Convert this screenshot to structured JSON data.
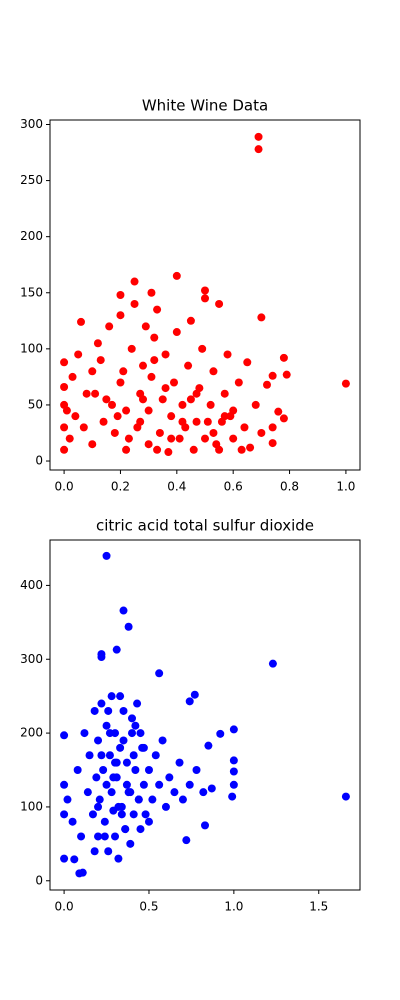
{
  "chart_data": [
    {
      "type": "scatter",
      "title": "White Wine Data",
      "color": "#ff0000",
      "x": [
        0.69,
        0.69,
        1.0,
        0.78,
        0.79,
        0.7,
        0.4,
        0.25,
        0.5,
        0.55,
        0.31,
        0.2,
        0.06,
        0.74,
        0.72,
        0.74,
        0.74,
        0.76,
        0.78,
        0,
        0,
        0,
        0,
        0,
        0.02,
        0.04,
        0.05,
        0.08,
        0.1,
        0.1,
        0.12,
        0.14,
        0.15,
        0.16,
        0.18,
        0.2,
        0.2,
        0.22,
        0.22,
        0.24,
        0.25,
        0.26,
        0.27,
        0.28,
        0.29,
        0.3,
        0.3,
        0.31,
        0.32,
        0.33,
        0.34,
        0.35,
        0.36,
        0.37,
        0.38,
        0.39,
        0.4,
        0.41,
        0.42,
        0.44,
        0.45,
        0.46,
        0.47,
        0.48,
        0.49,
        0.5,
        0.5,
        0.52,
        0.53,
        0.55,
        0.56,
        0.57,
        0.58,
        0.6,
        0.6,
        0.62,
        0.64,
        0.65,
        0.66,
        0.68,
        0.7,
        0.03,
        0.07,
        0.13,
        0.19,
        0.23,
        0.28,
        0.33,
        0.36,
        0.43,
        0.47,
        0.51,
        0.54,
        0.59,
        0.63,
        0.01,
        0.11,
        0.17,
        0.21,
        0.27,
        0.32,
        0.38,
        0.42,
        0.45,
        0.53,
        0.57
      ],
      "y": [
        289,
        278,
        69,
        92,
        77,
        128,
        165,
        160,
        152,
        140,
        150,
        148,
        124,
        76,
        68,
        30,
        16,
        44,
        38,
        10,
        30,
        50,
        66,
        88,
        20,
        40,
        95,
        60,
        15,
        80,
        105,
        35,
        55,
        120,
        25,
        70,
        130,
        45,
        10,
        100,
        140,
        30,
        60,
        85,
        120,
        15,
        45,
        75,
        110,
        135,
        25,
        55,
        95,
        8,
        40,
        70,
        115,
        20,
        50,
        85,
        125,
        10,
        35,
        65,
        100,
        145,
        20,
        50,
        80,
        10,
        35,
        60,
        95,
        20,
        45,
        70,
        30,
        88,
        12,
        50,
        25,
        75,
        30,
        90,
        40,
        20,
        55,
        10,
        65,
        30,
        60,
        35,
        15,
        40,
        10,
        45,
        60,
        50,
        80,
        35,
        90,
        20,
        35,
        55,
        25,
        40
      ],
      "xlim": [
        -0.05,
        1.05
      ],
      "ylim": [
        -8,
        304
      ],
      "xticks": [
        {
          "value": 0,
          "label": "0.0"
        },
        0.2,
        0.4,
        0.6,
        0.8,
        {
          "value": 1,
          "label": "1.0"
        }
      ],
      "yticks": [
        0,
        50,
        100,
        150,
        200,
        250,
        300
      ]
    },
    {
      "type": "scatter",
      "title": "citric acid total sulfur dioxide",
      "color": "#0000ff",
      "x": [
        0.25,
        0.35,
        0.38,
        0.31,
        0.22,
        0.22,
        1.23,
        1.66,
        0.56,
        0.0,
        0.0,
        0.06,
        0.09,
        0.11,
        1.0,
        1.0,
        1.0,
        1.0,
        0.99,
        0.92,
        0.85,
        0.72,
        0.77,
        0.74,
        0.83,
        0.82,
        0.87,
        0,
        0,
        0.02,
        0.05,
        0.08,
        0.1,
        0.12,
        0.14,
        0.15,
        0.17,
        0.18,
        0.19,
        0.2,
        0.2,
        0.21,
        0.22,
        0.23,
        0.24,
        0.25,
        0.26,
        0.27,
        0.28,
        0.28,
        0.29,
        0.3,
        0.3,
        0.31,
        0.32,
        0.33,
        0.34,
        0.35,
        0.36,
        0.37,
        0.38,
        0.39,
        0.4,
        0.41,
        0.42,
        0.43,
        0.44,
        0.45,
        0.46,
        0.47,
        0.48,
        0.5,
        0.52,
        0.54,
        0.56,
        0.58,
        0.6,
        0.62,
        0.65,
        0.68,
        0.7,
        0.74,
        0.78,
        0.2,
        0.25,
        0.3,
        0.35,
        0.4,
        0.45,
        0.5,
        0.22,
        0.27,
        0.32,
        0.37,
        0.42,
        0.47,
        0.24,
        0.29,
        0.34,
        0.39,
        0.44,
        0.26,
        0.31,
        0.36,
        0.41,
        0.18,
        0.33
      ],
      "y": [
        440,
        366,
        344,
        313,
        307,
        303,
        294,
        114,
        281,
        197,
        30,
        29,
        10,
        11,
        205,
        163,
        148,
        130,
        114,
        199,
        183,
        55,
        252,
        243,
        75,
        120,
        125,
        130,
        90,
        110,
        80,
        150,
        60,
        200,
        120,
        170,
        90,
        230,
        140,
        60,
        190,
        110,
        240,
        150,
        80,
        210,
        40,
        170,
        120,
        250,
        95,
        60,
        200,
        140,
        30,
        180,
        100,
        230,
        70,
        160,
        120,
        50,
        200,
        90,
        150,
        240,
        110,
        70,
        180,
        130,
        90,
        150,
        110,
        170,
        130,
        190,
        100,
        140,
        120,
        160,
        110,
        130,
        150,
        100,
        130,
        160,
        190,
        220,
        200,
        80,
        170,
        200,
        100,
        130,
        210,
        180,
        60,
        140,
        90,
        120,
        110,
        230,
        160,
        70,
        170,
        40,
        250
      ],
      "xlim": [
        -0.083,
        1.743
      ],
      "ylim": [
        -12.5,
        461.5
      ],
      "xticks": [
        {
          "value": 0,
          "label": "0.0"
        },
        0.5,
        {
          "value": 1,
          "label": "1.0"
        },
        1.5
      ],
      "yticks": [
        0,
        100,
        200,
        300,
        400
      ]
    }
  ]
}
